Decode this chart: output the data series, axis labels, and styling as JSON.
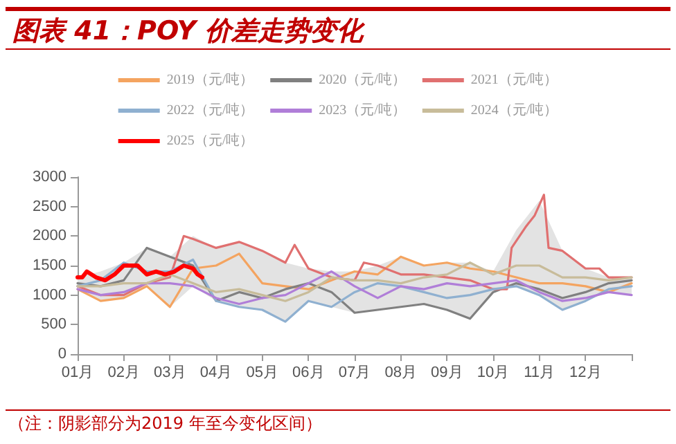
{
  "chart_data": {
    "type": "line",
    "title": "图表 41：POY 价差走势变化",
    "annotations": [
      "（注：阴影部分为2019 年至今变化区间）"
    ],
    "x": [
      1,
      1.5,
      2,
      2.5,
      3,
      3.5,
      4,
      4.5,
      5,
      5.5,
      6,
      6.5,
      7,
      7.5,
      8,
      8.5,
      9,
      9.5,
      10,
      10.5,
      11,
      11.5,
      12,
      12.5,
      13
    ],
    "xlim": [
      1,
      13
    ],
    "xticks": [
      {
        "value": 1,
        "label": "01月"
      },
      {
        "value": 2,
        "label": "02月"
      },
      {
        "value": 3,
        "label": "03月"
      },
      {
        "value": 4,
        "label": "04月"
      },
      {
        "value": 5,
        "label": "05月"
      },
      {
        "value": 6,
        "label": "06月"
      },
      {
        "value": 7,
        "label": "07月"
      },
      {
        "value": 8,
        "label": "08月"
      },
      {
        "value": 9,
        "label": "09月"
      },
      {
        "value": 10,
        "label": "10月"
      },
      {
        "value": 11,
        "label": "11月"
      },
      {
        "value": 12,
        "label": "12月"
      },
      {
        "value": 13,
        "label": null
      }
    ],
    "ylim": [
      0,
      3000
    ],
    "yticks": [
      0,
      500,
      1000,
      1500,
      2000,
      2500,
      3000
    ],
    "grid": false,
    "legend": "top",
    "marker": "none",
    "line_style": "solid",
    "series": [
      {
        "type": "area",
        "color": "#e3e3e3",
        "values": [
          null,
          null,
          null,
          null,
          null,
          null,
          null,
          null,
          null,
          null,
          null,
          null,
          null,
          null,
          null,
          null,
          null,
          null,
          null,
          null,
          null,
          null,
          null,
          null,
          null
        ],
        "lower": [
          1100,
          900,
          950,
          1150,
          800,
          1150,
          900,
          800,
          750,
          550,
          900,
          800,
          700,
          750,
          800,
          850,
          750,
          600,
          1050,
          1150,
          1000,
          750,
          900,
          1050,
          1000
        ],
        "upper": [
          1300,
          1400,
          1550,
          1800,
          1650,
          2000,
          1800,
          1900,
          1750,
          1550,
          1450,
          1400,
          1400,
          1500,
          1650,
          1500,
          1550,
          1550,
          1400,
          2100,
          2600,
          1750,
          1450,
          1300,
          1300
        ]
      },
      {
        "name": "2019（元/吨）",
        "color": "#f4a460",
        "values": [
          1100,
          900,
          950,
          1150,
          800,
          1450,
          1500,
          1700,
          1200,
          1150,
          1100,
          1250,
          1400,
          1350,
          1650,
          1500,
          1550,
          1450,
          1400,
          1300,
          1200,
          1200,
          1150,
          1050,
          1200
        ]
      },
      {
        "name": "2020（元/吨）",
        "color": "#808080",
        "values": [
          1200,
          1150,
          1250,
          1800,
          1650,
          1500,
          900,
          1050,
          950,
          1100,
          1200,
          1050,
          700,
          750,
          800,
          850,
          750,
          600,
          1050,
          1200,
          1100,
          950,
          1050,
          1200,
          1250
        ]
      },
      {
        "name": "2021（元/吨）",
        "color": "#e07070",
        "x": [
          1,
          1.5,
          2,
          2.5,
          3,
          3.3,
          3.5,
          4,
          4.5,
          5,
          5.5,
          5.7,
          6,
          6.5,
          7,
          7.2,
          7.5,
          8,
          8.5,
          9,
          9.5,
          10,
          10.3,
          10.4,
          10.7,
          10.9,
          11.1,
          11.2,
          11.5,
          12,
          12.3,
          12.5,
          13
        ],
        "values": [
          1150,
          1000,
          1000,
          1200,
          1300,
          2000,
          1950,
          1800,
          1900,
          1750,
          1550,
          1850,
          1450,
          1300,
          1250,
          1550,
          1500,
          1350,
          1350,
          1300,
          1250,
          1100,
          1100,
          1800,
          2150,
          2350,
          2700,
          1800,
          1750,
          1450,
          1450,
          1300,
          1300
        ]
      },
      {
        "name": "2022（元/吨）",
        "color": "#8fb0d0",
        "values": [
          1150,
          1250,
          1550,
          1400,
          1400,
          1600,
          900,
          800,
          750,
          550,
          900,
          800,
          1050,
          1200,
          1150,
          1050,
          950,
          1000,
          1100,
          1150,
          1000,
          750,
          900,
          1100,
          1150
        ]
      },
      {
        "name": "2023（元/吨）",
        "color": "#b07ed8",
        "values": [
          1100,
          1000,
          1050,
          1200,
          1200,
          1150,
          950,
          850,
          950,
          1000,
          1200,
          1400,
          1150,
          950,
          1150,
          1100,
          1200,
          1150,
          1200,
          1250,
          1050,
          900,
          950,
          1050,
          1000
        ]
      },
      {
        "name": "2024（元/吨）",
        "color": "#c8bc9a",
        "values": [
          1150,
          1150,
          1200,
          1200,
          1350,
          1200,
          1050,
          1100,
          1000,
          900,
          1050,
          1300,
          1250,
          1250,
          1200,
          1300,
          1350,
          1550,
          1350,
          1500,
          1500,
          1300,
          1300,
          1250,
          1300
        ]
      },
      {
        "name": "2025（元/吨）",
        "color": "#ff0000",
        "x": [
          1,
          1.1,
          1.2,
          1.4,
          1.6,
          1.8,
          2,
          2.3,
          2.5,
          2.7,
          2.9,
          3.1,
          3.3,
          3.5,
          3.6,
          3.7
        ],
        "values": [
          1300,
          1300,
          1400,
          1300,
          1250,
          1350,
          1500,
          1500,
          1350,
          1400,
          1350,
          1400,
          1500,
          1450,
          1350,
          1300
        ]
      }
    ]
  }
}
